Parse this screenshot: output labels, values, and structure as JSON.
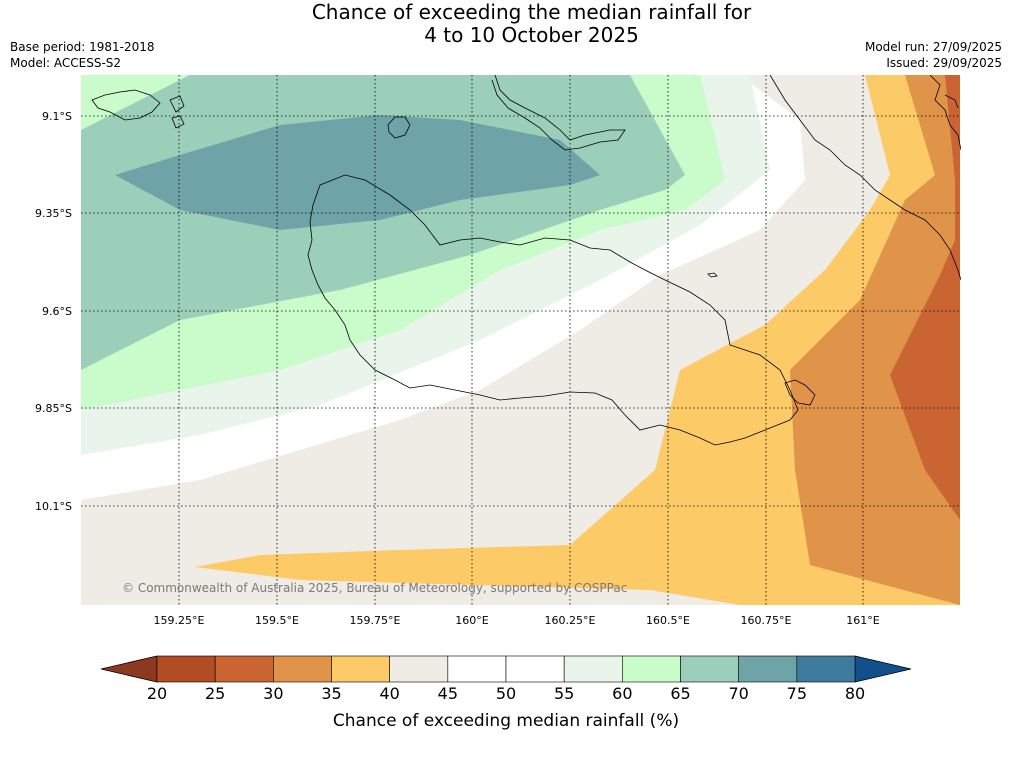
{
  "title": {
    "line1": "Chance of exceeding the median rainfall for",
    "line2": "4 to 10 October 2025"
  },
  "meta": {
    "base_period": "Base period: 1981-2018",
    "model": "Model: ACCESS-S2",
    "model_run": "Model run: 27/09/2025",
    "issued": "Issued: 29/09/2025"
  },
  "map": {
    "lat_labels": [
      "9.1°S",
      "9.35°S",
      "9.6°S",
      "9.85°S",
      "10.1°S"
    ],
    "lon_labels": [
      "159.25°E",
      "159.5°E",
      "159.75°E",
      "160°E",
      "160.25°E",
      "160.5°E",
      "160.75°E",
      "161°E"
    ],
    "copyright": "© Commonwealth of Australia 2025, Bureau of Meteorology, supported by COSPPac"
  },
  "colorbar": {
    "ticks": [
      "20",
      "25",
      "30",
      "35",
      "40",
      "45",
      "50",
      "55",
      "60",
      "65",
      "70",
      "75",
      "80"
    ],
    "colors": [
      "#b14c24",
      "#ca6433",
      "#e0944a",
      "#fdca68",
      "#efebe5",
      "#ffffff",
      "#ffffff",
      "#e9f4ea",
      "#c9fcca",
      "#9ccfb9",
      "#6ea4a7",
      "#3e7b9f"
    ],
    "low_arrow_color": "#8c3a1f",
    "high_arrow_color": "#12508c",
    "label": "Chance of exceeding median rainfall (%)"
  }
}
